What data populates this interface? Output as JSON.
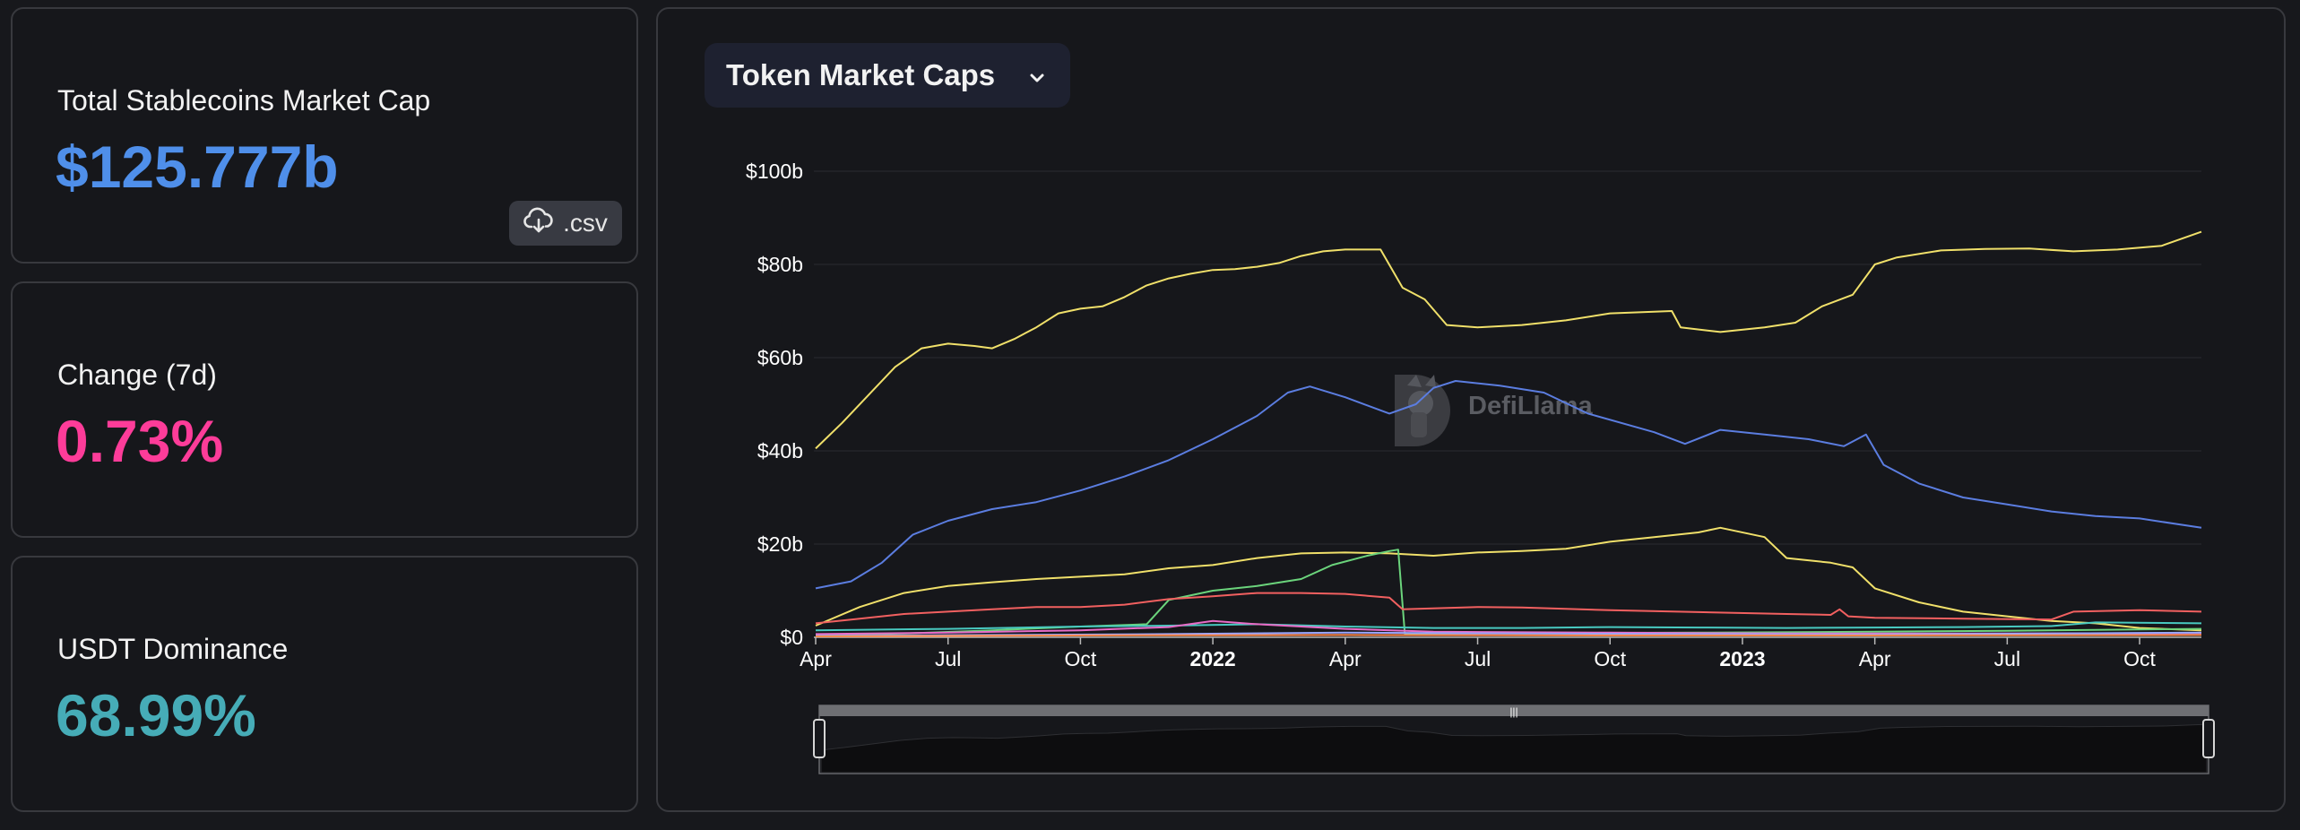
{
  "stats": {
    "market_cap": {
      "label": "Total Stablecoins Market Cap",
      "value": "$125.777b",
      "color": "#4f8fea"
    },
    "change": {
      "label": "Change (7d)",
      "value": "0.73%",
      "color": "#fd3c99"
    },
    "dominance": {
      "label": "USDT Dominance",
      "value": "68.99%",
      "color": "#46acb7"
    }
  },
  "csv_button": {
    "label": ".csv",
    "icon": "cloud-download-icon"
  },
  "chart_selector": {
    "label": "Token Market Caps",
    "icon": "chevron-down-icon"
  },
  "watermark": {
    "text": "DefiLlama",
    "icon": "llama-logo-icon"
  },
  "chart_data": {
    "type": "line",
    "title": "",
    "xlabel": "",
    "ylabel": "",
    "ylim": [
      0,
      100
    ],
    "y_ticks": [
      "$0",
      "$20b",
      "$40b",
      "$60b",
      "$80b",
      "$100b"
    ],
    "y_tick_values": [
      0,
      20,
      40,
      60,
      80,
      100
    ],
    "x_ticks": [
      "Apr",
      "Jul",
      "Oct",
      "2022",
      "Apr",
      "Jul",
      "Oct",
      "2023",
      "Apr",
      "Jul",
      "Oct"
    ],
    "x_tick_months": [
      0,
      3,
      6,
      9,
      12,
      15,
      18,
      21,
      24,
      27,
      30
    ],
    "x_bold_ticks": [
      "2022",
      "2023"
    ],
    "x_range_months": [
      0,
      31.4
    ],
    "grid": true,
    "legend": "none",
    "series": [
      {
        "color": "#f0e06a",
        "points": [
          [
            0,
            40.5
          ],
          [
            0.6,
            46
          ],
          [
            1.2,
            52
          ],
          [
            1.8,
            58
          ],
          [
            2.4,
            62
          ],
          [
            3,
            63
          ],
          [
            3.6,
            62.5
          ],
          [
            4,
            62
          ],
          [
            4.5,
            64
          ],
          [
            5,
            66.5
          ],
          [
            5.5,
            69.5
          ],
          [
            6,
            70.5
          ],
          [
            6.5,
            71
          ],
          [
            7,
            73
          ],
          [
            7.5,
            75.5
          ],
          [
            8,
            77
          ],
          [
            8.5,
            78
          ],
          [
            9,
            78.8
          ],
          [
            9.5,
            79
          ],
          [
            10,
            79.5
          ],
          [
            10.5,
            80.3
          ],
          [
            11,
            81.8
          ],
          [
            11.5,
            82.8
          ],
          [
            12,
            83.2
          ],
          [
            12.8,
            83.2
          ],
          [
            13.3,
            75
          ],
          [
            13.8,
            72.5
          ],
          [
            14.3,
            67
          ],
          [
            15,
            66.5
          ],
          [
            16,
            67
          ],
          [
            17,
            68
          ],
          [
            18,
            69.5
          ],
          [
            19.4,
            70
          ],
          [
            19.6,
            66.5
          ],
          [
            20.5,
            65.5
          ],
          [
            21.5,
            66.5
          ],
          [
            22.2,
            67.5
          ],
          [
            22.8,
            71
          ],
          [
            23.5,
            73.5
          ],
          [
            24,
            80
          ],
          [
            24.5,
            81.5
          ],
          [
            25.5,
            83
          ],
          [
            26.5,
            83.3
          ],
          [
            27.5,
            83.4
          ],
          [
            28.5,
            82.8
          ],
          [
            29.5,
            83.2
          ],
          [
            30.5,
            84
          ],
          [
            31.4,
            87
          ]
        ]
      },
      {
        "color": "#5b7de0",
        "points": [
          [
            0,
            10.5
          ],
          [
            0.8,
            12
          ],
          [
            1.5,
            16
          ],
          [
            2.2,
            22
          ],
          [
            3,
            25
          ],
          [
            4,
            27.5
          ],
          [
            5,
            29
          ],
          [
            6,
            31.5
          ],
          [
            6.5,
            33
          ],
          [
            7,
            34.5
          ],
          [
            8,
            38
          ],
          [
            9,
            42.5
          ],
          [
            10,
            47.5
          ],
          [
            10.7,
            52.5
          ],
          [
            11.2,
            53.8
          ],
          [
            12,
            51.5
          ],
          [
            13,
            48
          ],
          [
            13.6,
            50
          ],
          [
            14,
            53.5
          ],
          [
            14.5,
            55
          ],
          [
            15.5,
            54
          ],
          [
            16.5,
            52.5
          ],
          [
            17.5,
            48
          ],
          [
            19,
            44
          ],
          [
            19.7,
            41.5
          ],
          [
            20.5,
            44.5
          ],
          [
            21.5,
            43.5
          ],
          [
            22.5,
            42.5
          ],
          [
            23.3,
            41
          ],
          [
            23.8,
            43.5
          ],
          [
            24.2,
            37
          ],
          [
            25,
            33
          ],
          [
            26,
            30
          ],
          [
            27,
            28.5
          ],
          [
            28,
            27
          ],
          [
            29,
            26
          ],
          [
            30,
            25.5
          ],
          [
            31.4,
            23.5
          ]
        ]
      },
      {
        "color": "#f0e06a",
        "points": [
          [
            0,
            2.5
          ],
          [
            1,
            6.5
          ],
          [
            2,
            9.5
          ],
          [
            3,
            11
          ],
          [
            4,
            11.8
          ],
          [
            5,
            12.5
          ],
          [
            6,
            13
          ],
          [
            7,
            13.5
          ],
          [
            8,
            14.8
          ],
          [
            9,
            15.5
          ],
          [
            10,
            17
          ],
          [
            11,
            18
          ],
          [
            12,
            18.2
          ],
          [
            13,
            18
          ],
          [
            14,
            17.5
          ],
          [
            15,
            18.2
          ],
          [
            16,
            18.5
          ],
          [
            17,
            19
          ],
          [
            18,
            20.5
          ],
          [
            19,
            21.5
          ],
          [
            20,
            22.5
          ],
          [
            20.5,
            23.5
          ],
          [
            21.5,
            21.5
          ],
          [
            22,
            17
          ],
          [
            23,
            16
          ],
          [
            23.5,
            15
          ],
          [
            24,
            10.5
          ],
          [
            25,
            7.5
          ],
          [
            26,
            5.5
          ],
          [
            27,
            4.5
          ],
          [
            28,
            3.5
          ],
          [
            29,
            3
          ],
          [
            30,
            2
          ],
          [
            31.4,
            1.5
          ]
        ]
      },
      {
        "color": "#6bd47c",
        "points": [
          [
            0,
            0.5
          ],
          [
            2,
            0.8
          ],
          [
            4,
            1.5
          ],
          [
            6,
            2.3
          ],
          [
            7.5,
            2.8
          ],
          [
            8,
            8
          ],
          [
            9,
            10
          ],
          [
            10,
            11
          ],
          [
            11,
            12.5
          ],
          [
            11.7,
            15.5
          ],
          [
            12.5,
            17.5
          ],
          [
            13,
            18.5
          ],
          [
            13.2,
            18.8
          ],
          [
            13.35,
            0.8
          ],
          [
            16,
            0.9
          ],
          [
            20,
            1
          ],
          [
            24,
            1.2
          ],
          [
            27,
            1.4
          ],
          [
            31.4,
            1.8
          ]
        ]
      },
      {
        "color": "#f26060",
        "points": [
          [
            0,
            3
          ],
          [
            1,
            4
          ],
          [
            2,
            5
          ],
          [
            3,
            5.5
          ],
          [
            4,
            6
          ],
          [
            5,
            6.5
          ],
          [
            6,
            6.5
          ],
          [
            7,
            7
          ],
          [
            8,
            8.2
          ],
          [
            9,
            8.8
          ],
          [
            10,
            9.5
          ],
          [
            11,
            9.5
          ],
          [
            12,
            9.3
          ],
          [
            13,
            8.5
          ],
          [
            13.3,
            6
          ],
          [
            15,
            6.5
          ],
          [
            16,
            6.4
          ],
          [
            18,
            5.8
          ],
          [
            20,
            5.4
          ],
          [
            22,
            5
          ],
          [
            23,
            4.8
          ],
          [
            23.2,
            6
          ],
          [
            23.4,
            4.5
          ],
          [
            24,
            4.2
          ],
          [
            26,
            4
          ],
          [
            28,
            3.8
          ],
          [
            28.5,
            5.5
          ],
          [
            30,
            5.8
          ],
          [
            31.4,
            5.5
          ]
        ]
      },
      {
        "color": "#48c9c0",
        "points": [
          [
            0,
            1.5
          ],
          [
            3,
            1.8
          ],
          [
            6,
            2.3
          ],
          [
            8,
            2.5
          ],
          [
            10,
            2.8
          ],
          [
            12,
            2.3
          ],
          [
            14,
            2
          ],
          [
            16,
            2
          ],
          [
            18,
            2.2
          ],
          [
            20,
            2.1
          ],
          [
            22,
            2
          ],
          [
            24,
            2.1
          ],
          [
            26,
            2.2
          ],
          [
            28,
            2.4
          ],
          [
            29,
            3.2
          ],
          [
            31.4,
            3
          ]
        ]
      },
      {
        "color": "#e86cc7",
        "points": [
          [
            0,
            0.7
          ],
          [
            3,
            1
          ],
          [
            6,
            1.5
          ],
          [
            8,
            2.2
          ],
          [
            9,
            3.5
          ],
          [
            10,
            2.8
          ],
          [
            12,
            1.8
          ],
          [
            14,
            1.2
          ],
          [
            18,
            1
          ],
          [
            22,
            0.8
          ],
          [
            26,
            0.8
          ],
          [
            31.4,
            0.9
          ]
        ]
      },
      {
        "color": "#9aa7ff",
        "points": [
          [
            0,
            0.3
          ],
          [
            4,
            0.5
          ],
          [
            8,
            0.7
          ],
          [
            12,
            1
          ],
          [
            16,
            0.8
          ],
          [
            20,
            0.7
          ],
          [
            24,
            0.6
          ],
          [
            28,
            0.8
          ],
          [
            31.4,
            1
          ]
        ]
      },
      {
        "color": "#ff8a4c",
        "points": [
          [
            0,
            0.2
          ],
          [
            6,
            0.4
          ],
          [
            12,
            0.5
          ],
          [
            18,
            0.4
          ],
          [
            24,
            0.4
          ],
          [
            31.4,
            0.5
          ]
        ]
      }
    ],
    "overview_color": "#6b6b6b"
  }
}
